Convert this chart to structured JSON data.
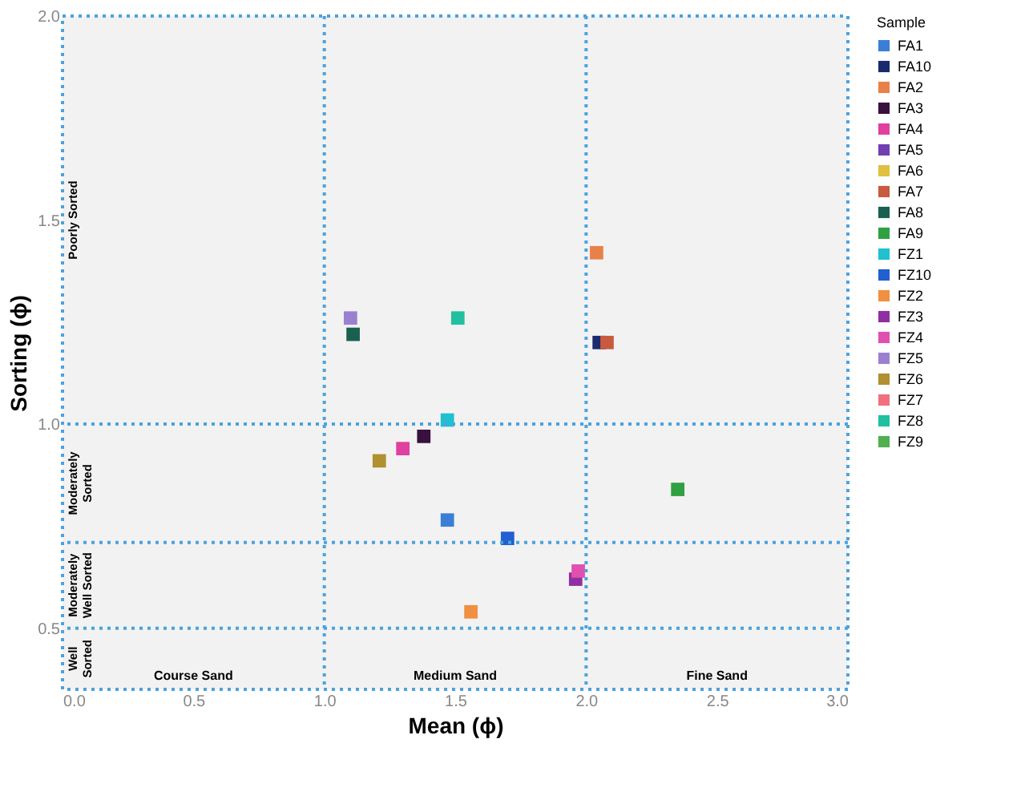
{
  "chart_data": {
    "type": "scatter",
    "xlabel": "Mean (ϕ)",
    "ylabel": "Sorting (ϕ)",
    "legend_title": "Sample",
    "legend": "right",
    "marker": "square",
    "grid": false,
    "xlim": [
      0.0,
      3.0
    ],
    "xticks": [
      {
        "value": 0,
        "label": "0.0"
      },
      0.5,
      {
        "value": 1,
        "label": "1.0"
      },
      1.5,
      {
        "value": 2,
        "label": "2.0"
      },
      2.5,
      {
        "value": 3,
        "label": "3.0"
      }
    ],
    "ylim": [
      0.35,
      2.0
    ],
    "yticks": [
      0.5,
      {
        "value": 1,
        "label": "1.0"
      },
      1.5,
      {
        "value": 2,
        "label": "2.0"
      }
    ],
    "series": [
      {
        "name": "FA1",
        "color": "#3a7fd5",
        "x": [
          1.47
        ],
        "values": [
          0.765
        ]
      },
      {
        "name": "FA10",
        "color": "#1a2a6c",
        "x": [
          2.05
        ],
        "values": [
          1.2
        ]
      },
      {
        "name": "FA2",
        "color": "#e8804a",
        "x": [
          2.04
        ],
        "values": [
          1.42
        ]
      },
      {
        "name": "FA3",
        "color": "#3a1040",
        "x": [
          1.38
        ],
        "values": [
          0.97
        ]
      },
      {
        "name": "FA4",
        "color": "#e040a0",
        "x": [
          1.3
        ],
        "values": [
          0.94
        ]
      },
      {
        "name": "FA5",
        "color": "#7040b0",
        "x": [
          null
        ],
        "values": [
          null
        ]
      },
      {
        "name": "FA6",
        "color": "#e0c040",
        "x": [
          null
        ],
        "values": [
          null
        ]
      },
      {
        "name": "FA7",
        "color": "#c85a40",
        "x": [
          2.08
        ],
        "values": [
          1.2
        ]
      },
      {
        "name": "FA8",
        "color": "#1a6050",
        "x": [
          1.11
        ],
        "values": [
          1.22
        ]
      },
      {
        "name": "FA9",
        "color": "#30a040",
        "x": [
          2.35
        ],
        "values": [
          0.84
        ]
      },
      {
        "name": "FZ1",
        "color": "#20c0d0",
        "x": [
          1.47
        ],
        "values": [
          1.01
        ]
      },
      {
        "name": "FZ10",
        "color": "#2060d0",
        "x": [
          1.7
        ],
        "values": [
          0.72
        ]
      },
      {
        "name": "FZ2",
        "color": "#f09040",
        "x": [
          1.56
        ],
        "values": [
          0.54
        ]
      },
      {
        "name": "FZ3",
        "color": "#9030a0",
        "x": [
          1.96
        ],
        "values": [
          0.62
        ]
      },
      {
        "name": "FZ4",
        "color": "#e050b0",
        "x": [
          1.97
        ],
        "values": [
          0.64
        ]
      },
      {
        "name": "FZ5",
        "color": "#9a80d0",
        "x": [
          1.1
        ],
        "values": [
          1.26
        ]
      },
      {
        "name": "FZ6",
        "color": "#b09030",
        "x": [
          1.21
        ],
        "values": [
          0.91
        ]
      },
      {
        "name": "FZ7",
        "color": "#f07080",
        "x": [
          null
        ],
        "values": [
          null
        ]
      },
      {
        "name": "FZ8",
        "color": "#20c0a0",
        "x": [
          1.51
        ],
        "values": [
          1.26
        ]
      },
      {
        "name": "FZ9",
        "color": "#50b050",
        "x": [
          null
        ],
        "values": [
          null
        ]
      }
    ],
    "ref_lines": [
      {
        "axis": "x",
        "value": 1.0,
        "color": "#4aa3df",
        "line_style": "dotted"
      },
      {
        "axis": "x",
        "value": 2.0,
        "color": "#4aa3df",
        "line_style": "dotted"
      },
      {
        "axis": "y",
        "value": 0.5,
        "color": "#4aa3df",
        "line_style": "dotted"
      },
      {
        "axis": "y",
        "value": 0.71,
        "color": "#4aa3df",
        "line_style": "dotted"
      },
      {
        "axis": "y",
        "value": 1.0,
        "color": "#4aa3df",
        "line_style": "dotted"
      }
    ],
    "annotations": [
      "Poorly Sorted",
      "Moderately Sorted",
      "Moderately Well Sorted",
      "Well Sorted",
      "Course Sand",
      "Medium Sand",
      "Fine Sand"
    ]
  }
}
